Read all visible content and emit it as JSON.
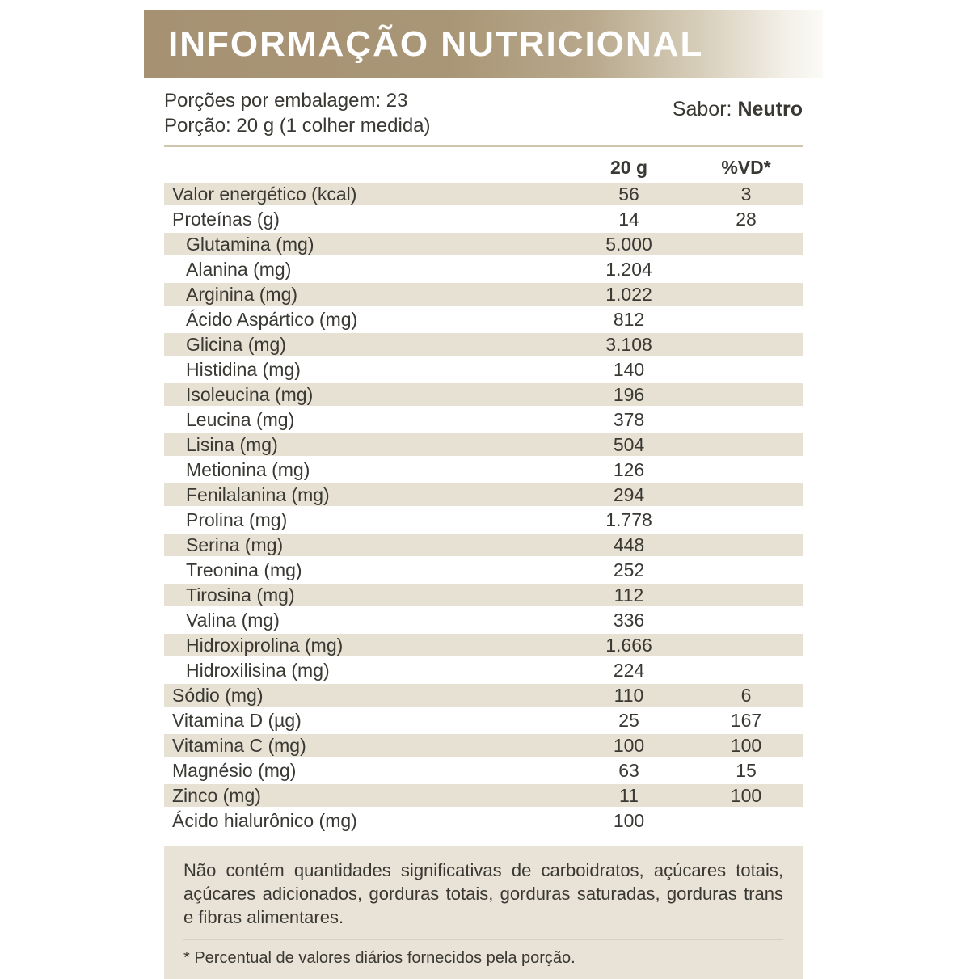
{
  "header": {
    "title": "INFORMAÇÃO NUTRICIONAL"
  },
  "serving": {
    "servings_per_package": "Porções por embalagem: 23",
    "serving_size": "Porção: 20 g (1 colher medida)",
    "flavor_label": "Sabor:",
    "flavor_value": "Neutro"
  },
  "table": {
    "col_amount_header": "20 g",
    "col_dv_header": "%VD*",
    "rows": [
      {
        "name": "Valor energético (kcal)",
        "amount": "56",
        "dv": "3",
        "indent": false,
        "shaded": true
      },
      {
        "name": "Proteínas (g)",
        "amount": "14",
        "dv": "28",
        "indent": false,
        "shaded": false
      },
      {
        "name": "Glutamina (mg)",
        "amount": "5.000",
        "dv": "",
        "indent": true,
        "shaded": true
      },
      {
        "name": "Alanina (mg)",
        "amount": "1.204",
        "dv": "",
        "indent": true,
        "shaded": false
      },
      {
        "name": "Arginina (mg)",
        "amount": "1.022",
        "dv": "",
        "indent": true,
        "shaded": true
      },
      {
        "name": "Ácido Aspártico (mg)",
        "amount": "812",
        "dv": "",
        "indent": true,
        "shaded": false
      },
      {
        "name": "Glicina (mg)",
        "amount": "3.108",
        "dv": "",
        "indent": true,
        "shaded": true
      },
      {
        "name": "Histidina (mg)",
        "amount": "140",
        "dv": "",
        "indent": true,
        "shaded": false
      },
      {
        "name": "Isoleucina (mg)",
        "amount": "196",
        "dv": "",
        "indent": true,
        "shaded": true
      },
      {
        "name": "Leucina (mg)",
        "amount": "378",
        "dv": "",
        "indent": true,
        "shaded": false
      },
      {
        "name": "Lisina (mg)",
        "amount": "504",
        "dv": "",
        "indent": true,
        "shaded": true
      },
      {
        "name": "Metionina (mg)",
        "amount": "126",
        "dv": "",
        "indent": true,
        "shaded": false
      },
      {
        "name": "Fenilalanina (mg)",
        "amount": "294",
        "dv": "",
        "indent": true,
        "shaded": true
      },
      {
        "name": "Prolina (mg)",
        "amount": "1.778",
        "dv": "",
        "indent": true,
        "shaded": false
      },
      {
        "name": "Serina (mg)",
        "amount": "448",
        "dv": "",
        "indent": true,
        "shaded": true
      },
      {
        "name": "Treonina (mg)",
        "amount": "252",
        "dv": "",
        "indent": true,
        "shaded": false
      },
      {
        "name": "Tirosina (mg)",
        "amount": "112",
        "dv": "",
        "indent": true,
        "shaded": true
      },
      {
        "name": "Valina (mg)",
        "amount": "336",
        "dv": "",
        "indent": true,
        "shaded": false
      },
      {
        "name": "Hidroxiprolina (mg)",
        "amount": "1.666",
        "dv": "",
        "indent": true,
        "shaded": true
      },
      {
        "name": "Hidroxilisina (mg)",
        "amount": "224",
        "dv": "",
        "indent": true,
        "shaded": false
      },
      {
        "name": "Sódio (mg)",
        "amount": "110",
        "dv": "6",
        "indent": false,
        "shaded": true
      },
      {
        "name": "Vitamina D (µg)",
        "amount": "25",
        "dv": "167",
        "indent": false,
        "shaded": false
      },
      {
        "name": "Vitamina C (mg)",
        "amount": "100",
        "dv": "100",
        "indent": false,
        "shaded": true
      },
      {
        "name": "Magnésio (mg)",
        "amount": "63",
        "dv": "15",
        "indent": false,
        "shaded": false
      },
      {
        "name": "Zinco (mg)",
        "amount": "11",
        "dv": "100",
        "indent": false,
        "shaded": true
      },
      {
        "name": "Ácido hialurônico (mg)",
        "amount": "100",
        "dv": "",
        "indent": false,
        "shaded": false
      }
    ]
  },
  "footer": {
    "no_significant_note": "Não contém quantidades significativas de carboidratos, açúcares totais, açúcares adicionados, gorduras totais, gorduras saturadas, gorduras trans e fibras alimentares.",
    "daily_value_footnote": "* Percentual de valores diários fornecidos pela porção."
  },
  "colors": {
    "banner_gold": "#a69273",
    "row_shade": "#e6e1d3",
    "footer_shade": "#e8e3d6",
    "rule_tan": "#cfc5ae",
    "title_text": "#ffffff",
    "body_text": "#3a3833"
  }
}
